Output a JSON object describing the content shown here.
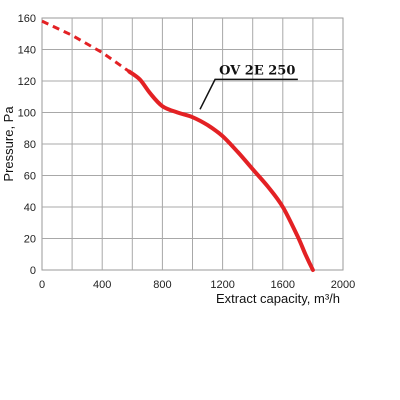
{
  "chart_data": {
    "type": "line",
    "xlabel": "Extract capacity, m³/h",
    "ylabel": "Pressure, Pa",
    "xlim": [
      0,
      2000
    ],
    "ylim": [
      0,
      160
    ],
    "xticks": [
      0,
      400,
      800,
      1200,
      1600,
      2000
    ],
    "yticks": [
      0,
      20,
      40,
      60,
      80,
      100,
      120,
      140,
      160
    ],
    "x_gridlines": [
      0,
      200,
      400,
      600,
      800,
      1000,
      1200,
      1400,
      1600,
      1800,
      2000
    ],
    "grid": true,
    "series": [
      {
        "color": "#e32124",
        "dashed_segment": [
          [
            0,
            158
          ],
          [
            200,
            149
          ],
          [
            400,
            138
          ],
          [
            580,
            126
          ]
        ],
        "points": [
          [
            580,
            126
          ],
          [
            650,
            121
          ],
          [
            720,
            112
          ],
          [
            800,
            104
          ],
          [
            900,
            100
          ],
          [
            1000,
            97
          ],
          [
            1100,
            92
          ],
          [
            1200,
            85
          ],
          [
            1300,
            75
          ],
          [
            1400,
            64
          ],
          [
            1500,
            53
          ],
          [
            1600,
            40
          ],
          [
            1700,
            21
          ],
          [
            1750,
            10
          ],
          [
            1800,
            0
          ]
        ]
      }
    ],
    "annotation": {
      "text": "OV 2E 250",
      "point": [
        1050,
        102
      ],
      "elbow": [
        1150,
        121
      ],
      "end": [
        1700,
        121
      ]
    }
  }
}
